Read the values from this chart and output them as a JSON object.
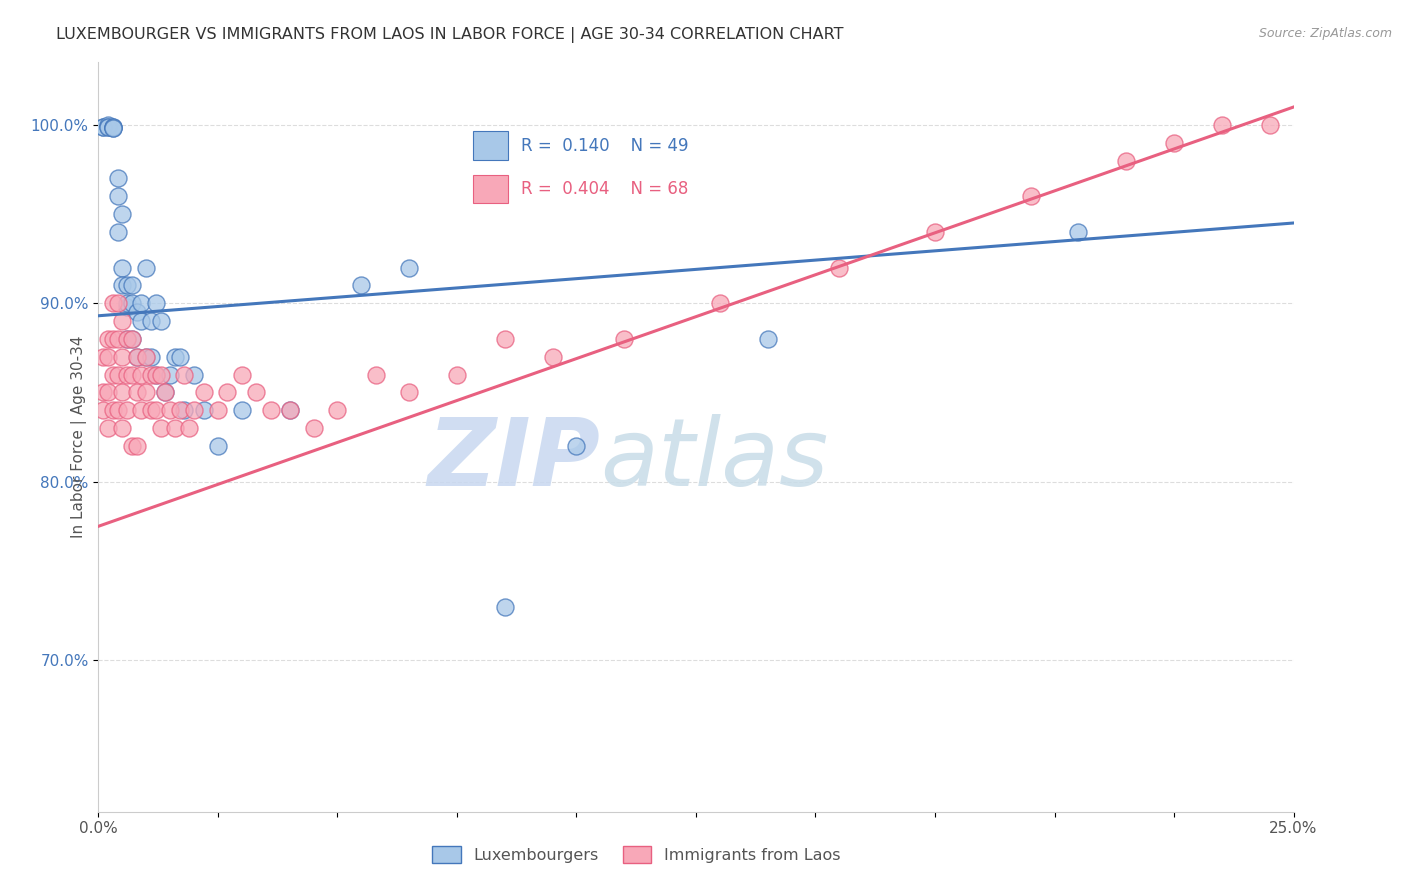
{
  "title": "LUXEMBOURGER VS IMMIGRANTS FROM LAOS IN LABOR FORCE | AGE 30-34 CORRELATION CHART",
  "source": "Source: ZipAtlas.com",
  "ylabel": "In Labor Force | Age 30-34",
  "ytick_labels": [
    "70.0%",
    "80.0%",
    "90.0%",
    "100.0%"
  ],
  "ytick_values": [
    0.7,
    0.8,
    0.9,
    1.0
  ],
  "xlim": [
    0.0,
    0.25
  ],
  "ylim": [
    0.615,
    1.035
  ],
  "blue_color": "#A8C8E8",
  "pink_color": "#F8A8B8",
  "blue_line_color": "#4477BB",
  "pink_line_color": "#E86080",
  "blue_R": 0.14,
  "blue_N": 49,
  "pink_R": 0.404,
  "pink_N": 68,
  "legend_label_blue": "Luxembourgers",
  "legend_label_pink": "Immigrants from Laos",
  "blue_scatter_x": [
    0.001,
    0.001,
    0.002,
    0.002,
    0.002,
    0.003,
    0.003,
    0.003,
    0.003,
    0.004,
    0.004,
    0.004,
    0.005,
    0.005,
    0.005,
    0.006,
    0.006,
    0.006,
    0.006,
    0.007,
    0.007,
    0.007,
    0.008,
    0.008,
    0.009,
    0.009,
    0.01,
    0.01,
    0.011,
    0.011,
    0.012,
    0.012,
    0.013,
    0.014,
    0.015,
    0.016,
    0.017,
    0.018,
    0.02,
    0.022,
    0.025,
    0.03,
    0.04,
    0.055,
    0.065,
    0.085,
    0.1,
    0.14,
    0.205
  ],
  "blue_scatter_y": [
    0.999,
    0.999,
    1.0,
    0.999,
    0.999,
    0.999,
    0.998,
    0.999,
    0.998,
    0.96,
    0.97,
    0.94,
    0.95,
    0.92,
    0.91,
    0.91,
    0.898,
    0.9,
    0.88,
    0.91,
    0.9,
    0.88,
    0.895,
    0.87,
    0.9,
    0.89,
    0.92,
    0.87,
    0.89,
    0.87,
    0.9,
    0.86,
    0.89,
    0.85,
    0.86,
    0.87,
    0.87,
    0.84,
    0.86,
    0.84,
    0.82,
    0.84,
    0.84,
    0.91,
    0.92,
    0.73,
    0.82,
    0.88,
    0.94
  ],
  "pink_scatter_x": [
    0.001,
    0.001,
    0.001,
    0.002,
    0.002,
    0.002,
    0.002,
    0.003,
    0.003,
    0.003,
    0.003,
    0.004,
    0.004,
    0.004,
    0.004,
    0.005,
    0.005,
    0.005,
    0.005,
    0.006,
    0.006,
    0.006,
    0.007,
    0.007,
    0.007,
    0.008,
    0.008,
    0.008,
    0.009,
    0.009,
    0.01,
    0.01,
    0.011,
    0.011,
    0.012,
    0.012,
    0.013,
    0.013,
    0.014,
    0.015,
    0.016,
    0.017,
    0.018,
    0.019,
    0.02,
    0.022,
    0.025,
    0.027,
    0.03,
    0.033,
    0.036,
    0.04,
    0.045,
    0.05,
    0.058,
    0.065,
    0.075,
    0.085,
    0.095,
    0.11,
    0.13,
    0.155,
    0.175,
    0.195,
    0.215,
    0.225,
    0.235,
    0.245
  ],
  "pink_scatter_y": [
    0.87,
    0.85,
    0.84,
    0.88,
    0.87,
    0.85,
    0.83,
    0.9,
    0.88,
    0.86,
    0.84,
    0.9,
    0.88,
    0.86,
    0.84,
    0.89,
    0.87,
    0.85,
    0.83,
    0.88,
    0.86,
    0.84,
    0.88,
    0.86,
    0.82,
    0.87,
    0.85,
    0.82,
    0.86,
    0.84,
    0.87,
    0.85,
    0.86,
    0.84,
    0.86,
    0.84,
    0.86,
    0.83,
    0.85,
    0.84,
    0.83,
    0.84,
    0.86,
    0.83,
    0.84,
    0.85,
    0.84,
    0.85,
    0.86,
    0.85,
    0.84,
    0.84,
    0.83,
    0.84,
    0.86,
    0.85,
    0.86,
    0.88,
    0.87,
    0.88,
    0.9,
    0.92,
    0.94,
    0.96,
    0.98,
    0.99,
    1.0,
    1.0
  ],
  "watermark_zip": "ZIP",
  "watermark_atlas": "atlas",
  "background_color": "#FFFFFF",
  "grid_color": "#DDDDDD"
}
